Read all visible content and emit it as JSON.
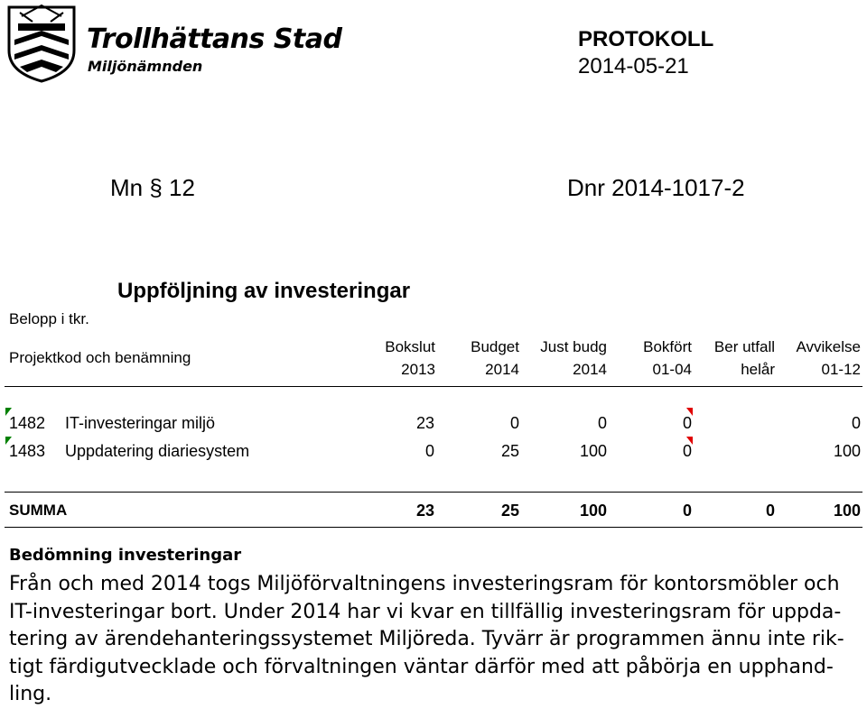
{
  "header": {
    "org_name": "Trollhättans Stad",
    "org_unit": "Miljönämnden",
    "doc_type": "PROTOKOLL",
    "doc_date": "2014-05-21"
  },
  "meta": {
    "paragraph": "Mn § 12",
    "dnr": "Dnr 2014-1017-2"
  },
  "report": {
    "title": "Uppföljning av investeringar",
    "amount_note": "Belopp i tkr.",
    "project_header": "Projektkod och benämning",
    "columns": [
      {
        "line1": "Bokslut",
        "line2": "2013"
      },
      {
        "line1": "Budget",
        "line2": "2014"
      },
      {
        "line1": "Just budg",
        "line2": "2014"
      },
      {
        "line1": "Bokfört",
        "line2": "01-04"
      },
      {
        "line1": "Ber utfall",
        "line2": "helår"
      },
      {
        "line1": "Avvikelse",
        "line2": "01-12"
      }
    ],
    "rows": [
      {
        "code": "1482",
        "name": "IT-investeringar miljö",
        "values": [
          "23",
          "0",
          "0",
          "0",
          "",
          "0"
        ]
      },
      {
        "code": "1483",
        "name": "Uppdatering diariesystem",
        "values": [
          "0",
          "25",
          "100",
          "0",
          "",
          "100"
        ]
      }
    ],
    "total": {
      "label": "SUMMA",
      "values": [
        "23",
        "25",
        "100",
        "0",
        "0",
        "100"
      ]
    }
  },
  "assessment": {
    "title": "Bedömning investeringar",
    "text": "Från och med 2014 togs Miljöförvaltningens investeringsram för kontorsmöbler och IT-investeringar bort. Under 2014 har vi kvar en tillfällig investeringsram för uppda-tering av ärendehanteringssystemet Miljöreda. Tyvärr är programmen ännu inte rik-tigt färdigutvecklade och förvaltningen väntar därför med att påbörja en upphand-ling."
  }
}
